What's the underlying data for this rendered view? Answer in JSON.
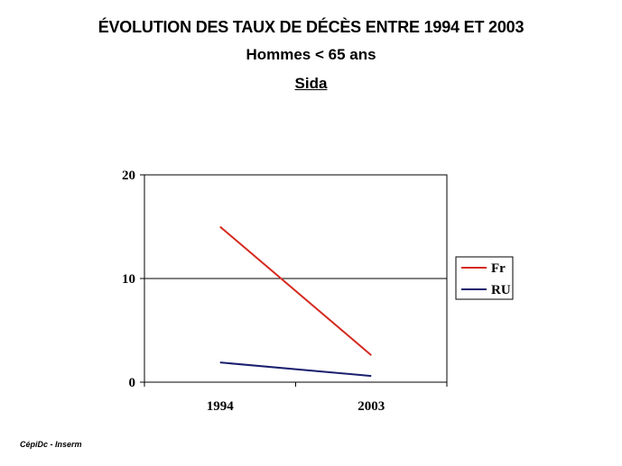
{
  "header": {
    "title": "ÉVOLUTION DES TAUX DE DÉCÈS ENTRE 1994 ET 2003",
    "subtitle": "Hommes < 65 ans",
    "subject": "Sida"
  },
  "footer": {
    "source": "CépiDc - Inserm"
  },
  "chart_data": {
    "type": "line",
    "x": [
      "1994",
      "2003"
    ],
    "series": [
      {
        "name": "Fr",
        "values": [
          15,
          2.6
        ],
        "color": "#d42a20"
      },
      {
        "name": "RU",
        "values": [
          1.9,
          0.6
        ],
        "color": "#1a1f6e"
      }
    ],
    "yticks": [
      "0",
      "10",
      "20"
    ],
    "ylim": [
      0,
      20
    ],
    "grid": true,
    "legend": "right"
  }
}
